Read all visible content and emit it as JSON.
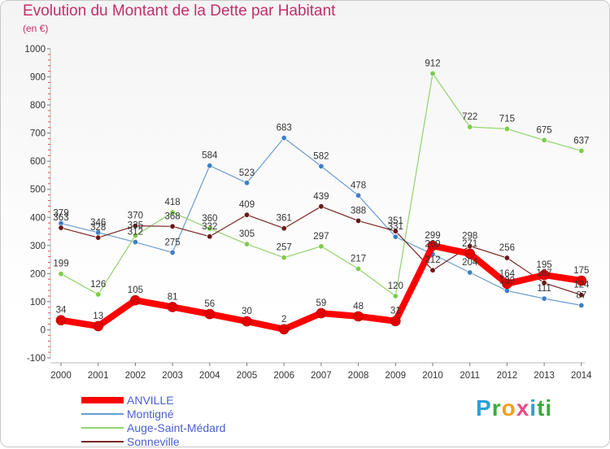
{
  "chart_data": {
    "type": "line",
    "title": "Evolution du Montant de la Dette par Habitant",
    "subtitle": "(en €)",
    "categories": [
      "2000",
      "2001",
      "2002",
      "2003",
      "2004",
      "2005",
      "2006",
      "2007",
      "2008",
      "2009",
      "2010",
      "2011",
      "2012",
      "2013",
      "2014"
    ],
    "y_ticks": [
      "-100",
      "0",
      "100",
      "200",
      "300",
      "400",
      "500",
      "600",
      "700",
      "800",
      "900",
      "1000"
    ],
    "ylim": [
      -100,
      1000
    ],
    "grid": false,
    "legend_position": "bottom-left",
    "series": [
      {
        "name": "ANVILLE",
        "color": "#ff0000",
        "width": 8,
        "marker": "#e00000",
        "values": [
          34,
          13,
          105,
          81,
          56,
          30,
          2,
          59,
          48,
          31,
          299,
          271,
          164,
          195,
          175
        ],
        "labels": [
          "34",
          "13",
          "105",
          "81",
          "56",
          "30",
          "2",
          "59",
          "48",
          "31",
          "299",
          "271",
          "164",
          "195",
          "175"
        ]
      },
      {
        "name": "Montigné",
        "color": "#6a9cd0",
        "width": 1.2,
        "marker": "#3f7fc4",
        "values": [
          379,
          346,
          312,
          275,
          584,
          523,
          683,
          582,
          478,
          331,
          269,
          204,
          139,
          111,
          87
        ],
        "labels": [
          "379",
          "346",
          "312",
          "275",
          "584",
          "523",
          "683",
          "582",
          "478",
          "331",
          "269",
          "204",
          "139",
          "111",
          "87"
        ]
      },
      {
        "name": "Auge-Saint-Médard",
        "color": "#8fd46a",
        "width": 1.2,
        "marker": "#7ccd4a",
        "values": [
          199,
          126,
          335,
          418,
          360,
          305,
          257,
          297,
          217,
          120,
          912,
          722,
          715,
          675,
          637
        ],
        "labels": [
          "199",
          "126",
          "335",
          "418",
          "360",
          "305",
          "257",
          "297",
          "217",
          "120",
          "912",
          "722",
          "715",
          "675",
          "637"
        ]
      },
      {
        "name": "Sonneville",
        "color": "#7a2424",
        "width": 1.2,
        "marker": "#6a1818",
        "values": [
          363,
          328,
          370,
          368,
          332,
          409,
          361,
          439,
          388,
          351,
          212,
          298,
          256,
          167,
          124
        ],
        "labels": [
          "363",
          "328",
          "370",
          "368",
          "332",
          "409",
          "361",
          "439",
          "388",
          "351",
          "212",
          "298",
          "256",
          "167",
          "124"
        ]
      }
    ]
  },
  "logo": {
    "letters": [
      "P",
      "r",
      "o",
      "x",
      "i",
      "ti"
    ]
  }
}
